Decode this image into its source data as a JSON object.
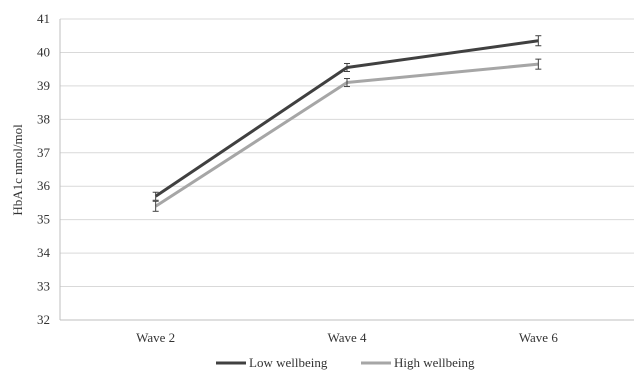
{
  "chart_data": {
    "type": "line",
    "title": "",
    "xlabel": "",
    "ylabel": "HbA1c nmol/mol",
    "categories": [
      "Wave 2",
      "Wave 4",
      "Wave 6"
    ],
    "ylim": [
      32,
      41
    ],
    "yticks": [
      32,
      33,
      34,
      35,
      36,
      37,
      38,
      39,
      40,
      41
    ],
    "grid": true,
    "legend": "bottom",
    "series": [
      {
        "name": "Low wellbeing",
        "color": "#404040",
        "values": [
          35.7,
          39.55,
          40.35
        ],
        "errors": [
          0.12,
          0.12,
          0.15
        ]
      },
      {
        "name": "High wellbeing",
        "color": "#a6a6a6",
        "values": [
          35.4,
          39.1,
          39.65
        ],
        "errors": [
          0.15,
          0.12,
          0.15
        ]
      }
    ]
  }
}
